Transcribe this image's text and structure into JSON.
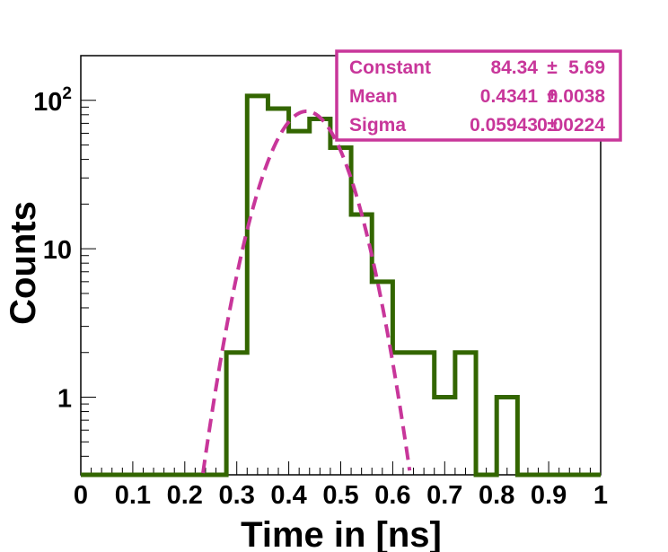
{
  "chart_data": {
    "type": "histogram",
    "xlabel": "Time in [ns]",
    "ylabel": "Counts",
    "xlim": [
      0,
      1
    ],
    "ylim": [
      0.3,
      200
    ],
    "yscale": "log",
    "x_ticks": [
      "0",
      "0.1",
      "0.2",
      "0.3",
      "0.4",
      "0.5",
      "0.6",
      "0.7",
      "0.8",
      "0.9",
      "1"
    ],
    "x_tick_values": [
      0,
      0.1,
      0.2,
      0.3,
      0.4,
      0.5,
      0.6,
      0.7,
      0.8,
      0.9,
      1
    ],
    "y_ticks": [
      {
        "value": 1,
        "label": "1"
      },
      {
        "value": 10,
        "label": "10"
      },
      {
        "value": 100,
        "label": "10",
        "sup": "2"
      }
    ],
    "histogram": {
      "bin_edges": [
        0.28,
        0.32,
        0.36,
        0.4,
        0.44,
        0.48,
        0.52,
        0.56,
        0.6,
        0.64,
        0.68,
        0.72,
        0.76,
        0.8,
        0.84
      ],
      "counts": [
        2,
        107,
        88,
        62,
        75,
        48,
        17,
        6,
        2,
        2,
        1,
        2,
        0,
        1
      ],
      "color": "#336600"
    },
    "fit": {
      "function": "gaussian",
      "constant": 84.34,
      "mean": 0.4341,
      "sigma": 0.05943,
      "color": "#c8369a",
      "style": "dashed"
    },
    "stats_box": {
      "position": "top-right",
      "color": "#c8369a",
      "rows": [
        {
          "name": "Constant",
          "value": "84.34",
          "pm": "±",
          "error": "5.69"
        },
        {
          "name": "Mean",
          "value": "0.4341",
          "pm": "±",
          "error": "0.0038"
        },
        {
          "name": "Sigma",
          "value": "0.05943",
          "pm": "±",
          "error": "0.00224"
        }
      ]
    }
  }
}
